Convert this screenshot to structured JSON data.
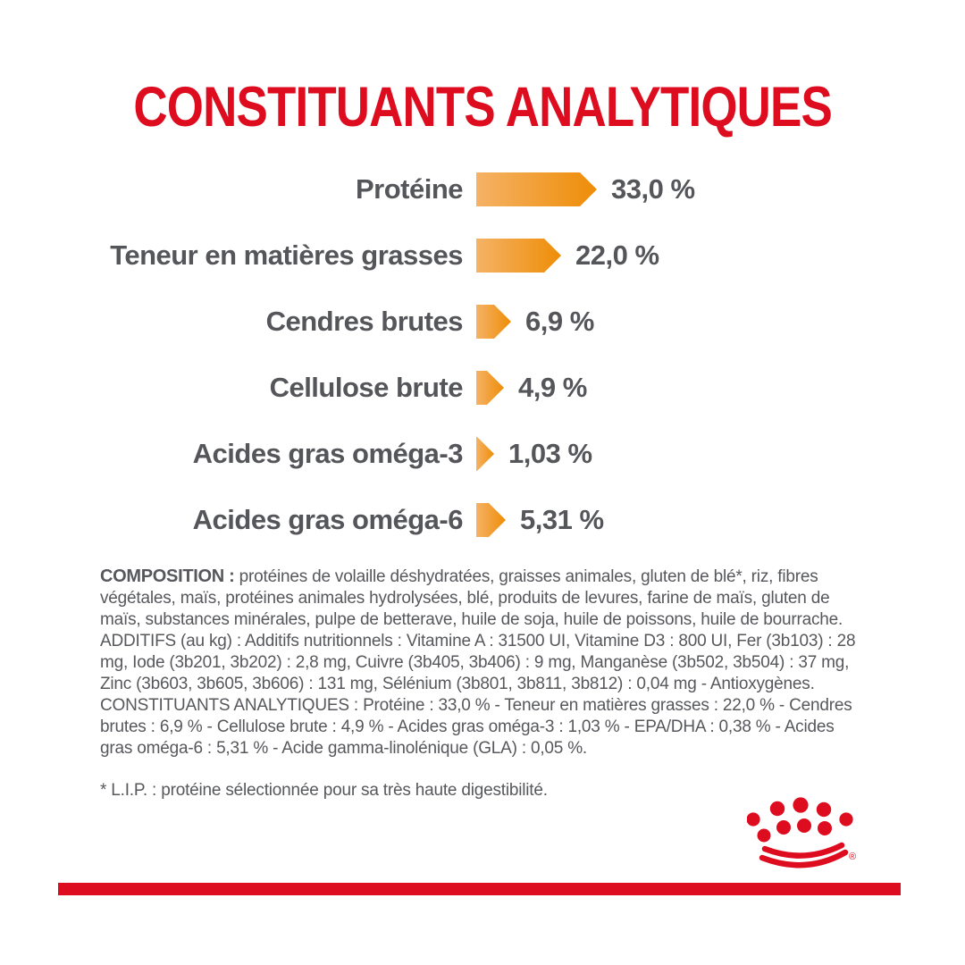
{
  "title": "CONSTITUANTS ANALYTIQUES",
  "chart_data": {
    "type": "bar",
    "orientation": "horizontal",
    "unit": "%",
    "title": "CONSTITUANTS ANALYTIQUES",
    "categories": [
      "Protéine",
      "Teneur en matières grasses",
      "Cendres brutes",
      "Cellulose brute",
      "Acides gras oméga-3",
      "Acides gras oméga-6"
    ],
    "values": [
      33.0,
      22.0,
      6.9,
      4.9,
      1.03,
      5.31
    ],
    "value_labels": [
      "33,0 %",
      "22,0 %",
      "6,9 %",
      "4,9 %",
      "1,03 %",
      "5,31 %"
    ],
    "bar_gradient": [
      "#F5B266",
      "#EE8D07"
    ],
    "legend": "none",
    "grid": false
  },
  "paragraphs": {
    "composition_label": "COMPOSITION :",
    "composition_text": "protéines de volaille déshydratées, graisses animales, gluten de blé*, riz, fibres végétales, maïs, protéines animales hydrolysées, blé, produits de levures, farine de maïs, gluten de maïs, substances minérales, pulpe de betterave, huile de soja, huile de poissons, huile de bourrache.",
    "additives_text": "ADDITIFS (au kg) : Additifs nutritionnels : Vitamine A : 31500 UI, Vitamine D3 : 800 UI, Fer (3b103) : 28 mg, Iode (3b201, 3b202) : 2,8 mg, Cuivre (3b405, 3b406) : 9 mg, Manganèse (3b502, 3b504) : 37 mg, Zinc (3b603, 3b605, 3b606) : 131 mg, Sélénium (3b801, 3b811, 3b812) : 0,04 mg - Antioxygènes.",
    "analytical_text": "CONSTITUANTS ANALYTIQUES : Protéine : 33,0 % - Teneur en matières grasses : 22,0 % - Cendres brutes : 6,9 % - Cellulose brute : 4,9 % - Acides gras oméga-3 : 1,03 % - EPA/DHA : 0,38 % - Acides gras oméga-6 : 5,31 % - Acide gamma-linolénique (GLA) : 0,05 %.",
    "footnote": "* L.I.P. : protéine sélectionnée pour sa très haute digestibilité."
  },
  "branding": {
    "logo": "royal-canin-crown",
    "registered_mark": "®"
  },
  "colors": {
    "brand_red": "#DE0C1F",
    "bar_orange": "#EE8D07",
    "bar_orange_light": "#F5B266",
    "text_gray": "#57585C",
    "label_gray": "#55565A"
  }
}
